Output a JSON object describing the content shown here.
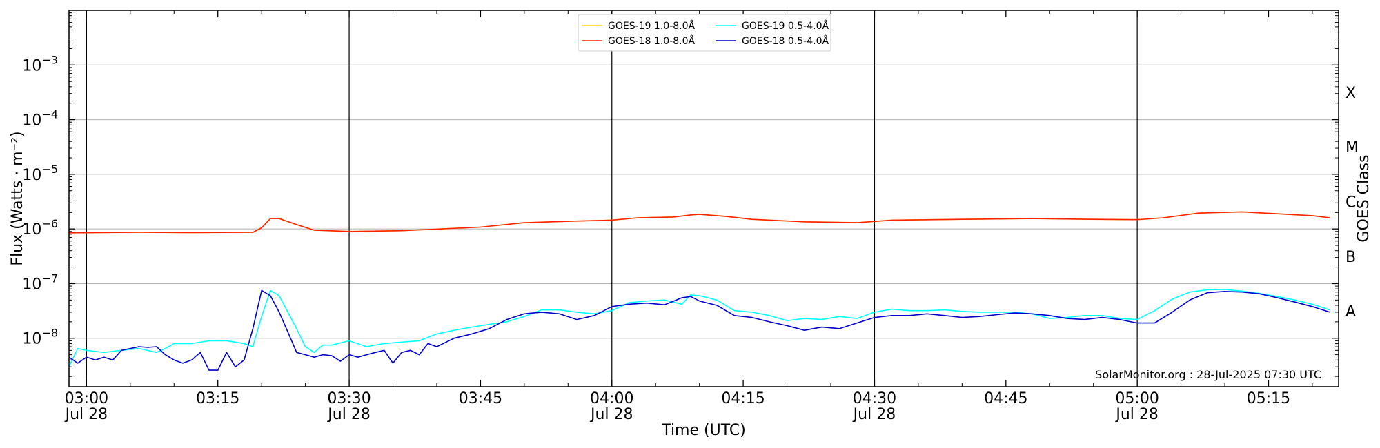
{
  "chart_data": {
    "type": "line",
    "xlabel": "Time (UTC)",
    "ylabel": "Flux (Watts · m⁻²)",
    "ylabel_right": "GOES Class",
    "yscale": "log",
    "ylim": [
      1.3e-09,
      0.01
    ],
    "xlim": [
      "2025-07-28 02:58",
      "2025-07-28 05:23"
    ],
    "grid": "horizontal at decades",
    "legend_position": "top-center",
    "x_tick_labels": [
      {
        "time": "03:00",
        "date": "Jul 28"
      },
      {
        "time": "03:15",
        "date": ""
      },
      {
        "time": "03:30",
        "date": "Jul 28"
      },
      {
        "time": "03:45",
        "date": ""
      },
      {
        "time": "04:00",
        "date": "Jul 28"
      },
      {
        "time": "04:15",
        "date": ""
      },
      {
        "time": "04:30",
        "date": "Jul 28"
      },
      {
        "time": "04:45",
        "date": ""
      },
      {
        "time": "05:00",
        "date": "Jul 28"
      },
      {
        "time": "05:15",
        "date": ""
      }
    ],
    "y_tick_labels": [
      {
        "base": "10",
        "exp": "−8"
      },
      {
        "base": "10",
        "exp": "−7"
      },
      {
        "base": "10",
        "exp": "−6"
      },
      {
        "base": "10",
        "exp": "−5"
      },
      {
        "base": "10",
        "exp": "−4"
      },
      {
        "base": "10",
        "exp": "−3"
      }
    ],
    "goes_classes": [
      "A",
      "B",
      "C",
      "M",
      "X"
    ],
    "watermark": "SolarMonitor.org : 28-Jul-2025 07:30 UTC",
    "series": [
      {
        "name": "GOES-19 1.0-8.0Å",
        "color": "#ffd700",
        "x": [
          "02:58",
          "03:06",
          "03:12",
          "03:19",
          "03:20",
          "03:21",
          "03:22",
          "03:24",
          "03:26",
          "03:30",
          "03:36",
          "03:45",
          "03:50",
          "03:55",
          "04:00",
          "04:03",
          "04:07",
          "04:09",
          "04:10",
          "04:13",
          "04:16",
          "04:22",
          "04:28",
          "04:32",
          "04:40",
          "04:48",
          "04:55",
          "05:00",
          "05:03",
          "05:07",
          "05:12",
          "05:20",
          "05:22"
        ],
        "values": [
          8.5e-07,
          8.7e-07,
          8.6e-07,
          8.7e-07,
          1.05e-06,
          1.55e-06,
          1.55e-06,
          1.2e-06,
          9.5e-07,
          9e-07,
          9.3e-07,
          1.08e-06,
          1.3e-06,
          1.38e-06,
          1.45e-06,
          1.6e-06,
          1.65e-06,
          1.8e-06,
          1.85e-06,
          1.7e-06,
          1.5e-06,
          1.35e-06,
          1.3e-06,
          1.45e-06,
          1.5e-06,
          1.55e-06,
          1.5e-06,
          1.48e-06,
          1.6e-06,
          1.95e-06,
          2.05e-06,
          1.75e-06,
          1.6e-06
        ]
      },
      {
        "name": "GOES-18 1.0-8.0Å",
        "color": "#ff2200",
        "x": [
          "02:58",
          "03:06",
          "03:12",
          "03:19",
          "03:20",
          "03:21",
          "03:22",
          "03:24",
          "03:26",
          "03:30",
          "03:36",
          "03:45",
          "03:50",
          "03:55",
          "04:00",
          "04:03",
          "04:07",
          "04:09",
          "04:10",
          "04:13",
          "04:16",
          "04:22",
          "04:28",
          "04:32",
          "04:40",
          "04:48",
          "04:55",
          "05:00",
          "05:03",
          "05:07",
          "05:12",
          "05:20",
          "05:22"
        ],
        "values": [
          8.5e-07,
          8.7e-07,
          8.6e-07,
          8.7e-07,
          1.05e-06,
          1.55e-06,
          1.55e-06,
          1.2e-06,
          9.5e-07,
          9e-07,
          9.3e-07,
          1.08e-06,
          1.3e-06,
          1.38e-06,
          1.45e-06,
          1.6e-06,
          1.65e-06,
          1.8e-06,
          1.85e-06,
          1.7e-06,
          1.5e-06,
          1.35e-06,
          1.3e-06,
          1.45e-06,
          1.5e-06,
          1.55e-06,
          1.5e-06,
          1.48e-06,
          1.6e-06,
          1.95e-06,
          2.05e-06,
          1.75e-06,
          1.6e-06
        ]
      },
      {
        "name": "GOES-19 0.5-4.0Å",
        "color": "#00ffff",
        "x": [
          "02:58",
          "02:59",
          "03:00",
          "03:02",
          "03:04",
          "03:06",
          "03:08",
          "03:09",
          "03:10",
          "03:12",
          "03:14",
          "03:16",
          "03:18",
          "03:19",
          "03:20",
          "03:21",
          "03:22",
          "03:23",
          "03:24",
          "03:25",
          "03:26",
          "03:27",
          "03:28",
          "03:30",
          "03:32",
          "03:34",
          "03:36",
          "03:38",
          "03:40",
          "03:42",
          "03:44",
          "03:46",
          "03:48",
          "03:50",
          "03:52",
          "03:54",
          "03:56",
          "03:58",
          "04:00",
          "04:02",
          "04:04",
          "04:06",
          "04:08",
          "04:09",
          "04:10",
          "04:12",
          "04:14",
          "04:16",
          "04:18",
          "04:20",
          "04:22",
          "04:24",
          "04:26",
          "04:28",
          "04:30",
          "04:32",
          "04:34",
          "04:36",
          "04:38",
          "04:40",
          "04:42",
          "04:44",
          "04:46",
          "04:48",
          "04:50",
          "04:52",
          "04:54",
          "04:56",
          "04:58",
          "05:00",
          "05:02",
          "05:04",
          "05:06",
          "05:08",
          "05:10",
          "05:12",
          "05:14",
          "05:16",
          "05:18",
          "05:20",
          "05:22"
        ],
        "values": [
          3e-09,
          6.5e-09,
          6e-09,
          5.5e-09,
          6e-09,
          6.5e-09,
          5.5e-09,
          6.5e-09,
          8e-09,
          8e-09,
          9e-09,
          9e-09,
          8e-09,
          7e-09,
          2.5e-08,
          7.5e-08,
          6e-08,
          3e-08,
          1.5e-08,
          7e-09,
          5.5e-09,
          7.5e-09,
          7.5e-09,
          9e-09,
          7e-09,
          8e-09,
          8.5e-09,
          9e-09,
          1.2e-08,
          1.4e-08,
          1.6e-08,
          1.8e-08,
          2e-08,
          2.5e-08,
          3.3e-08,
          3.3e-08,
          3e-08,
          2.8e-08,
          3.2e-08,
          4.5e-08,
          4.8e-08,
          5e-08,
          4.2e-08,
          6.2e-08,
          6e-08,
          5e-08,
          3.2e-08,
          3e-08,
          2.6e-08,
          2.1e-08,
          2.3e-08,
          2.2e-08,
          2.5e-08,
          2.3e-08,
          3e-08,
          3.4e-08,
          3.2e-08,
          3.2e-08,
          3.3e-08,
          3.1e-08,
          3e-08,
          3e-08,
          3e-08,
          2.8e-08,
          2.3e-08,
          2.4e-08,
          2.6e-08,
          2.6e-08,
          2.3e-08,
          2.2e-08,
          3.2e-08,
          5.2e-08,
          7e-08,
          7.7e-08,
          7.8e-08,
          7.3e-08,
          6.6e-08,
          5.8e-08,
          5e-08,
          4.2e-08,
          3.3e-08
        ]
      },
      {
        "name": "GOES-18 0.5-4.0Å",
        "color": "#0000cc",
        "x": [
          "02:58",
          "02:59",
          "03:00",
          "03:01",
          "03:02",
          "03:03",
          "03:04",
          "03:05",
          "03:06",
          "03:07",
          "03:08",
          "03:09",
          "03:10",
          "03:11",
          "03:12",
          "03:13",
          "03:14",
          "03:15",
          "03:16",
          "03:17",
          "03:18",
          "03:19",
          "03:20",
          "03:21",
          "03:22",
          "03:23",
          "03:24",
          "03:25",
          "03:26",
          "03:27",
          "03:28",
          "03:29",
          "03:30",
          "03:31",
          "03:32",
          "03:33",
          "03:34",
          "03:35",
          "03:36",
          "03:37",
          "03:38",
          "03:39",
          "03:40",
          "03:42",
          "03:44",
          "03:46",
          "03:48",
          "03:50",
          "03:52",
          "03:54",
          "03:56",
          "03:58",
          "04:00",
          "04:02",
          "04:04",
          "04:06",
          "04:08",
          "04:09",
          "04:10",
          "04:12",
          "04:14",
          "04:16",
          "04:18",
          "04:20",
          "04:22",
          "04:23",
          "04:24",
          "04:26",
          "04:28",
          "04:30",
          "04:32",
          "04:34",
          "04:36",
          "04:38",
          "04:40",
          "04:42",
          "04:44",
          "04:46",
          "04:48",
          "04:50",
          "04:52",
          "04:54",
          "04:56",
          "04:58",
          "05:00",
          "05:02",
          "05:04",
          "05:06",
          "05:08",
          "05:10",
          "05:12",
          "05:14",
          "05:16",
          "05:18",
          "05:20",
          "05:22"
        ],
        "values": [
          4.5e-09,
          3.5e-09,
          4.5e-09,
          4e-09,
          4.5e-09,
          4e-09,
          6e-09,
          6.5e-09,
          7e-09,
          6.8e-09,
          7e-09,
          5e-09,
          4e-09,
          3.5e-09,
          4e-09,
          5.5e-09,
          2.6e-09,
          2.6e-09,
          5.5e-09,
          3e-09,
          4e-09,
          1.5e-08,
          7.5e-08,
          6e-08,
          3e-08,
          1.3e-08,
          5.5e-09,
          5e-09,
          4.5e-09,
          5e-09,
          4.8e-09,
          3.8e-09,
          5e-09,
          4.5e-09,
          5e-09,
          5.5e-09,
          6e-09,
          3.5e-09,
          5.5e-09,
          6e-09,
          5e-09,
          8e-09,
          7e-09,
          1e-08,
          1.2e-08,
          1.5e-08,
          2.2e-08,
          2.8e-08,
          3e-08,
          2.8e-08,
          2.2e-08,
          2.6e-08,
          3.8e-08,
          4.2e-08,
          4.4e-08,
          4.1e-08,
          5.5e-08,
          5.8e-08,
          4.8e-08,
          4e-08,
          2.6e-08,
          2.4e-08,
          2e-08,
          1.7e-08,
          1.4e-08,
          1.5e-08,
          1.6e-08,
          1.5e-08,
          1.9e-08,
          2.4e-08,
          2.6e-08,
          2.6e-08,
          2.8e-08,
          2.6e-08,
          2.4e-08,
          2.5e-08,
          2.7e-08,
          2.9e-08,
          2.8e-08,
          2.6e-08,
          2.3e-08,
          2.2e-08,
          2.4e-08,
          2.2e-08,
          1.9e-08,
          1.9e-08,
          3e-08,
          5e-08,
          6.8e-08,
          7.2e-08,
          7e-08,
          6.5e-08,
          5.5e-08,
          4.6e-08,
          3.8e-08,
          3e-08
        ]
      }
    ]
  }
}
